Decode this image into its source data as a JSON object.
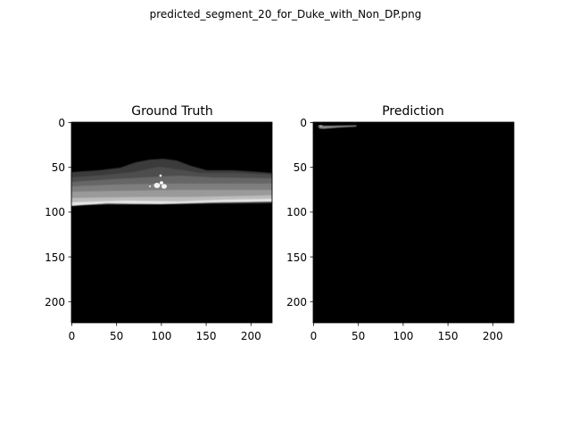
{
  "figure": {
    "suptitle": "predicted_segment_20_for_Duke_with_Non_DP.png",
    "background_color": "#ffffff"
  },
  "panels": [
    {
      "title": "Ground Truth",
      "image_shape": [
        224,
        224
      ],
      "colormap": "gray",
      "x_ticks": [
        0,
        50,
        100,
        150,
        200
      ],
      "y_ticks": [
        0,
        50,
        100,
        150,
        200
      ],
      "content": "grayscale segmentation mask: layered horizontal band spanning rows ~40 to ~92 with a dome near column ~100 and small bright spots near (row ~70, col ~100); black elsewhere"
    },
    {
      "title": "Prediction",
      "image_shape": [
        224,
        224
      ],
      "colormap": "gray",
      "x_ticks": [
        0,
        50,
        100,
        150,
        200
      ],
      "y_ticks": [
        0,
        50,
        100,
        150,
        200
      ],
      "content": "almost entirely black mask with a thin gray sliver near top-left (rows ~3 to ~7, cols ~6 to ~48)"
    }
  ]
}
